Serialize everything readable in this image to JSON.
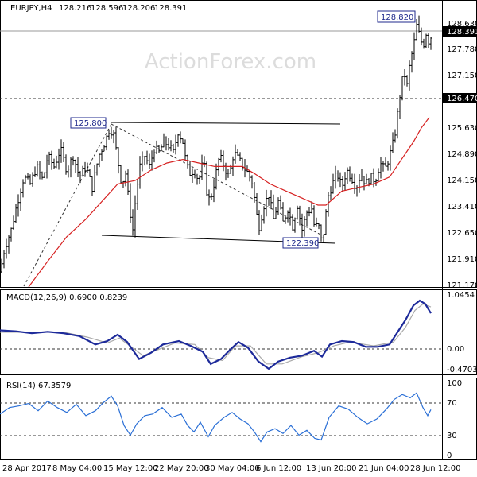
{
  "chart_data": [
    {
      "type": "candlestick",
      "symbol": "EURJPY,H4",
      "ohlc_header": [
        "128.216",
        "128.596",
        "128.206",
        "128.391"
      ],
      "watermark": "ActionForex.com",
      "ylim": [
        121.17,
        129.0
      ],
      "y_ticks": [
        "128.630",
        "127.780",
        "127.150",
        "125.630",
        "124.890",
        "124.150",
        "123.410",
        "122.650",
        "121.910",
        "121.170"
      ],
      "price_labels": {
        "current": "128.391",
        "level": "126.470"
      },
      "level_line": 126.47,
      "annotations": [
        {
          "text": "125.800",
          "value": 125.8
        },
        {
          "text": "122.390",
          "value": 122.39
        },
        {
          "text": "128.820",
          "value": 128.82
        }
      ],
      "x_tick_labels": [
        "28 Apr 2017",
        "8 May 04:00",
        "15 May 12:00",
        "22 May 20:00",
        "30 May 04:00",
        "6 Jun 12:00",
        "13 Jun 20:00",
        "21 Jun 04:00",
        "28 Jun 12:00"
      ],
      "close_path": [
        [
          0,
          121.6
        ],
        [
          6,
          122.3
        ],
        [
          14,
          122.8
        ],
        [
          22,
          123.6
        ],
        [
          30,
          124.3
        ],
        [
          38,
          124.1
        ],
        [
          46,
          124.6
        ],
        [
          54,
          124.2
        ],
        [
          60,
          124.9
        ],
        [
          68,
          124.6
        ],
        [
          76,
          125.1
        ],
        [
          84,
          124.5
        ],
        [
          92,
          124.9
        ],
        [
          100,
          124.3
        ],
        [
          108,
          124.6
        ],
        [
          116,
          124.0
        ],
        [
          124,
          124.9
        ],
        [
          132,
          125.3
        ],
        [
          138,
          125.7
        ],
        [
          143,
          125.5
        ],
        [
          148,
          124.8
        ],
        [
          153,
          124.1
        ],
        [
          158,
          124.4
        ],
        [
          163,
          123.4
        ],
        [
          167,
          122.8
        ],
        [
          171,
          123.8
        ],
        [
          176,
          124.6
        ],
        [
          182,
          124.9
        ],
        [
          188,
          124.6
        ],
        [
          194,
          125.1
        ],
        [
          200,
          125.0
        ],
        [
          206,
          125.3
        ],
        [
          212,
          125.2
        ],
        [
          218,
          125.0
        ],
        [
          224,
          125.6
        ],
        [
          230,
          125.3
        ],
        [
          234,
          124.7
        ],
        [
          238,
          124.4
        ],
        [
          244,
          124.5
        ],
        [
          250,
          124.2
        ],
        [
          256,
          124.8
        ],
        [
          260,
          123.9
        ],
        [
          264,
          123.6
        ],
        [
          270,
          124.2
        ],
        [
          276,
          124.9
        ],
        [
          282,
          124.6
        ],
        [
          288,
          124.3
        ],
        [
          294,
          125.0
        ],
        [
          300,
          124.8
        ],
        [
          306,
          124.6
        ],
        [
          312,
          124.4
        ],
        [
          318,
          124.1
        ],
        [
          322,
          123.3
        ],
        [
          326,
          122.9
        ],
        [
          332,
          123.5
        ],
        [
          338,
          123.8
        ],
        [
          344,
          123.1
        ],
        [
          350,
          123.6
        ],
        [
          356,
          123.0
        ],
        [
          362,
          123.4
        ],
        [
          368,
          122.9
        ],
        [
          374,
          123.5
        ],
        [
          380,
          122.8
        ],
        [
          386,
          123.3
        ],
        [
          392,
          123.4
        ],
        [
          396,
          122.8
        ],
        [
          400,
          123.0
        ],
        [
          404,
          122.5
        ],
        [
          408,
          122.8
        ],
        [
          412,
          123.7
        ],
        [
          418,
          124.1
        ],
        [
          424,
          124.4
        ],
        [
          430,
          124.0
        ],
        [
          436,
          124.5
        ],
        [
          442,
          124.3
        ],
        [
          448,
          124.0
        ],
        [
          454,
          124.4
        ],
        [
          460,
          124.1
        ],
        [
          466,
          124.3
        ],
        [
          472,
          124.2
        ],
        [
          478,
          124.7
        ],
        [
          484,
          124.5
        ],
        [
          490,
          124.9
        ],
        [
          496,
          125.4
        ],
        [
          500,
          126.1
        ],
        [
          504,
          126.8
        ],
        [
          508,
          127.3
        ],
        [
          512,
          126.9
        ],
        [
          516,
          127.6
        ],
        [
          520,
          128.0
        ],
        [
          524,
          128.6
        ],
        [
          528,
          128.3
        ],
        [
          532,
          128.0
        ],
        [
          536,
          128.4
        ],
        [
          540,
          128.1
        ],
        [
          543,
          128.39
        ]
      ],
      "ma_path": [
        [
          36,
          121.17
        ],
        [
          60,
          121.9
        ],
        [
          84,
          122.6
        ],
        [
          108,
          123.1
        ],
        [
          128,
          123.6
        ],
        [
          148,
          124.1
        ],
        [
          170,
          124.2
        ],
        [
          190,
          124.5
        ],
        [
          210,
          124.7
        ],
        [
          230,
          124.8
        ],
        [
          250,
          124.7
        ],
        [
          270,
          124.6
        ],
        [
          290,
          124.6
        ],
        [
          305,
          124.6
        ],
        [
          320,
          124.4
        ],
        [
          340,
          124.1
        ],
        [
          360,
          123.9
        ],
        [
          380,
          123.7
        ],
        [
          400,
          123.5
        ],
        [
          410,
          123.5
        ],
        [
          430,
          123.9
        ],
        [
          450,
          124.0
        ],
        [
          470,
          124.1
        ],
        [
          490,
          124.3
        ],
        [
          505,
          124.8
        ],
        [
          520,
          125.3
        ],
        [
          530,
          125.7
        ],
        [
          540,
          126.0
        ]
      ],
      "macd": {
        "label": "MACD(12,26,9) 0.6900 0.8239",
        "ylim": [
          -0.55,
          1.05
        ],
        "y_ticks": [
          "1.0454",
          "0.00",
          "-0.4703"
        ],
        "main": [
          [
            0,
            0.34
          ],
          [
            20,
            0.32
          ],
          [
            40,
            0.28
          ],
          [
            60,
            0.31
          ],
          [
            80,
            0.28
          ],
          [
            100,
            0.22
          ],
          [
            120,
            0.05
          ],
          [
            135,
            0.12
          ],
          [
            148,
            0.25
          ],
          [
            160,
            0.1
          ],
          [
            175,
            -0.25
          ],
          [
            190,
            -0.12
          ],
          [
            205,
            0.05
          ],
          [
            225,
            0.12
          ],
          [
            240,
            0.02
          ],
          [
            255,
            -0.1
          ],
          [
            265,
            -0.35
          ],
          [
            278,
            -0.25
          ],
          [
            290,
            -0.05
          ],
          [
            300,
            0.1
          ],
          [
            312,
            -0.02
          ],
          [
            325,
            -0.3
          ],
          [
            338,
            -0.45
          ],
          [
            350,
            -0.3
          ],
          [
            365,
            -0.22
          ],
          [
            380,
            -0.18
          ],
          [
            395,
            -0.08
          ],
          [
            405,
            -0.2
          ],
          [
            415,
            0.05
          ],
          [
            430,
            0.12
          ],
          [
            445,
            0.1
          ],
          [
            460,
            0.0
          ],
          [
            475,
            0.0
          ],
          [
            490,
            0.05
          ],
          [
            500,
            0.3
          ],
          [
            510,
            0.55
          ],
          [
            520,
            0.85
          ],
          [
            528,
            0.95
          ],
          [
            535,
            0.88
          ],
          [
            542,
            0.69
          ]
        ],
        "signal": [
          [
            0,
            0.3
          ],
          [
            40,
            0.3
          ],
          [
            80,
            0.3
          ],
          [
            110,
            0.2
          ],
          [
            135,
            0.08
          ],
          [
            150,
            0.18
          ],
          [
            165,
            0.0
          ],
          [
            180,
            -0.18
          ],
          [
            200,
            -0.05
          ],
          [
            220,
            0.08
          ],
          [
            245,
            0.05
          ],
          [
            262,
            -0.22
          ],
          [
            280,
            -0.28
          ],
          [
            296,
            0.02
          ],
          [
            315,
            0.02
          ],
          [
            335,
            -0.35
          ],
          [
            355,
            -0.35
          ],
          [
            380,
            -0.2
          ],
          [
            400,
            -0.12
          ],
          [
            420,
            0.02
          ],
          [
            440,
            0.1
          ],
          [
            470,
            0.02
          ],
          [
            495,
            0.1
          ],
          [
            510,
            0.4
          ],
          [
            522,
            0.75
          ],
          [
            532,
            0.88
          ],
          [
            542,
            0.82
          ]
        ]
      },
      "rsi": {
        "label": "RSI(14) 67.3579",
        "ylim": [
          8,
          100
        ],
        "y_ticks": [
          "100",
          "70",
          "30",
          "0"
        ],
        "levels": [
          70,
          30
        ],
        "values": [
          [
            0,
            62
          ],
          [
            12,
            70
          ],
          [
            24,
            72
          ],
          [
            36,
            75
          ],
          [
            48,
            66
          ],
          [
            60,
            78
          ],
          [
            72,
            70
          ],
          [
            84,
            64
          ],
          [
            96,
            74
          ],
          [
            108,
            60
          ],
          [
            120,
            66
          ],
          [
            130,
            76
          ],
          [
            140,
            84
          ],
          [
            148,
            72
          ],
          [
            156,
            48
          ],
          [
            164,
            36
          ],
          [
            172,
            50
          ],
          [
            182,
            60
          ],
          [
            192,
            62
          ],
          [
            204,
            70
          ],
          [
            216,
            58
          ],
          [
            228,
            62
          ],
          [
            236,
            48
          ],
          [
            244,
            40
          ],
          [
            252,
            52
          ],
          [
            262,
            34
          ],
          [
            270,
            48
          ],
          [
            282,
            58
          ],
          [
            292,
            64
          ],
          [
            302,
            56
          ],
          [
            312,
            50
          ],
          [
            320,
            40
          ],
          [
            328,
            28
          ],
          [
            336,
            40
          ],
          [
            346,
            44
          ],
          [
            356,
            38
          ],
          [
            366,
            48
          ],
          [
            376,
            36
          ],
          [
            386,
            42
          ],
          [
            396,
            32
          ],
          [
            404,
            30
          ],
          [
            414,
            58
          ],
          [
            426,
            72
          ],
          [
            438,
            68
          ],
          [
            450,
            58
          ],
          [
            462,
            50
          ],
          [
            474,
            56
          ],
          [
            486,
            68
          ],
          [
            496,
            80
          ],
          [
            506,
            86
          ],
          [
            516,
            82
          ],
          [
            524,
            88
          ],
          [
            532,
            70
          ],
          [
            538,
            60
          ],
          [
            542,
            67.36
          ]
        ]
      }
    }
  ]
}
